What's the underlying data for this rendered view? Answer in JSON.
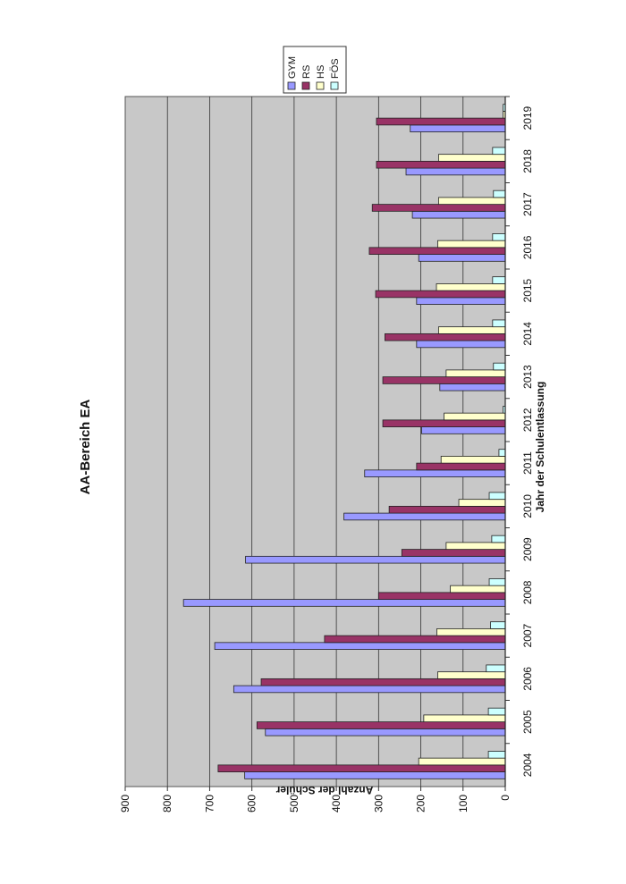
{
  "chart_data": {
    "type": "bar",
    "orientation": "rotated",
    "title": "AA-Bereich EA",
    "xlabel": "Jahr der Schulentlassung",
    "ylabel": "Anzahl der Schüler",
    "ylim": [
      0,
      900
    ],
    "yticks": [
      0,
      100,
      200,
      300,
      400,
      500,
      600,
      700,
      800,
      900
    ],
    "grid": true,
    "legend_position": "top-right",
    "categories": [
      "2004",
      "2005",
      "2006",
      "2007",
      "2008",
      "2009",
      "2010",
      "2011",
      "2012",
      "2013",
      "2014",
      "2015",
      "2016",
      "2017",
      "2018",
      "2019"
    ],
    "series": [
      {
        "name": "GYM",
        "color": "#9999ff",
        "values": [
          617,
          568,
          643,
          688,
          762,
          615,
          382,
          333,
          198,
          155,
          210,
          210,
          205,
          220,
          235,
          225
        ]
      },
      {
        "name": "RS",
        "color": "#993366",
        "values": [
          680,
          588,
          578,
          428,
          300,
          245,
          275,
          210,
          290,
          290,
          285,
          307,
          322,
          315,
          305,
          305
        ]
      },
      {
        "name": "HS",
        "color": "#ffffcc",
        "values": [
          205,
          193,
          160,
          162,
          130,
          140,
          110,
          152,
          145,
          140,
          158,
          163,
          160,
          158,
          158,
          5
        ]
      },
      {
        "name": "FÖS",
        "color": "#ccffff",
        "values": [
          40,
          40,
          45,
          35,
          38,
          32,
          38,
          15,
          5,
          28,
          30,
          30,
          30,
          28,
          30,
          5
        ]
      }
    ]
  }
}
